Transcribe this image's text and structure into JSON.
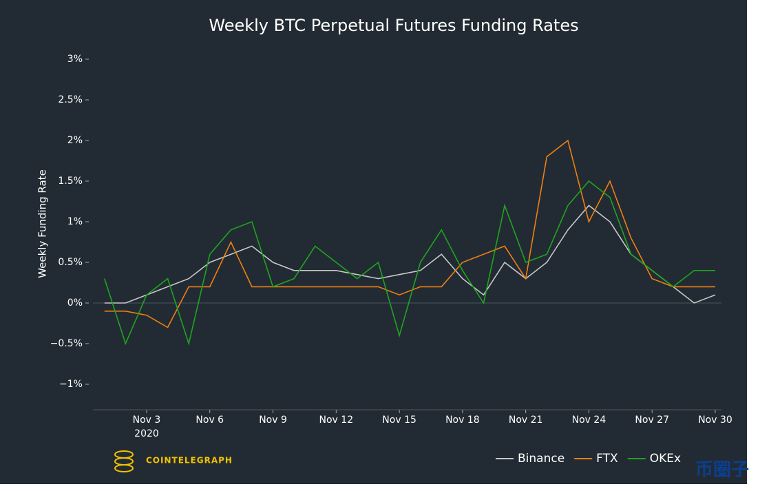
{
  "chart_data": {
    "type": "line",
    "title": "Weekly BTC Perpetual Futures Funding Rates",
    "y_label": "Weekly Funding Rate",
    "x": [
      "2020-11-01",
      "2020-11-02",
      "2020-11-03",
      "2020-11-04",
      "2020-11-05",
      "2020-11-06",
      "2020-11-07",
      "2020-11-08",
      "2020-11-09",
      "2020-11-10",
      "2020-11-11",
      "2020-11-12",
      "2020-11-13",
      "2020-11-14",
      "2020-11-15",
      "2020-11-16",
      "2020-11-17",
      "2020-11-18",
      "2020-11-19",
      "2020-11-20",
      "2020-11-21",
      "2020-11-22",
      "2020-11-23",
      "2020-11-24",
      "2020-11-25",
      "2020-11-26",
      "2020-11-27",
      "2020-11-28",
      "2020-11-29",
      "2020-11-30"
    ],
    "series": [
      {
        "name": "Binance",
        "color": "#c8c8c8",
        "values": [
          0.0,
          0.0,
          0.1,
          0.2,
          0.3,
          0.5,
          0.6,
          0.7,
          0.5,
          0.4,
          0.4,
          0.4,
          0.35,
          0.3,
          0.35,
          0.4,
          0.6,
          0.3,
          0.1,
          0.5,
          0.3,
          0.5,
          0.9,
          1.2,
          1.0,
          0.6,
          0.4,
          0.2,
          0.0,
          0.1
        ]
      },
      {
        "name": "FTX",
        "color": "#f07f13",
        "values": [
          -0.1,
          -0.1,
          -0.15,
          -0.3,
          0.2,
          0.2,
          0.75,
          0.2,
          0.2,
          0.2,
          0.2,
          0.2,
          0.2,
          0.2,
          0.1,
          0.2,
          0.2,
          0.5,
          0.6,
          0.7,
          0.3,
          1.8,
          2.0,
          1.0,
          1.5,
          0.8,
          0.3,
          0.2,
          0.2,
          0.2
        ]
      },
      {
        "name": "OKEx",
        "color": "#1fa51f",
        "values": [
          0.3,
          -0.5,
          0.1,
          0.3,
          -0.5,
          0.6,
          0.9,
          1.0,
          0.2,
          0.3,
          0.7,
          0.5,
          0.3,
          0.5,
          -0.4,
          0.5,
          0.9,
          0.4,
          0.0,
          1.2,
          0.5,
          0.6,
          1.2,
          1.5,
          1.3,
          0.6,
          0.4,
          0.2,
          0.4,
          0.4
        ]
      }
    ],
    "xlim": [
      "2020-10-31",
      "2020-12-01"
    ],
    "xticks": [
      {
        "value": "2020-11-03",
        "label": "Nov 3"
      },
      {
        "value": "2020-11-06",
        "label": "Nov 6"
      },
      {
        "value": "2020-11-09",
        "label": "Nov 9"
      },
      {
        "value": "2020-11-12",
        "label": "Nov 12"
      },
      {
        "value": "2020-11-15",
        "label": "Nov 15"
      },
      {
        "value": "2020-11-18",
        "label": "Nov 18"
      },
      {
        "value": "2020-11-21",
        "label": "Nov 21"
      },
      {
        "value": "2020-11-24",
        "label": "Nov 24"
      },
      {
        "value": "2020-11-27",
        "label": "Nov 27"
      },
      {
        "value": "2020-11-30",
        "label": "Nov 30"
      }
    ],
    "x_year_label": "2020",
    "ylim": [
      -1.3,
      3.1
    ],
    "yticks": [
      {
        "value": -1,
        "label": "−1%"
      },
      {
        "value": -0.5,
        "label": "−0.5%"
      },
      {
        "value": 0,
        "label": "0%"
      },
      {
        "value": 0.5,
        "label": "0.5%"
      },
      {
        "value": 1,
        "label": "1%"
      },
      {
        "value": 1.5,
        "label": "1.5%"
      },
      {
        "value": 2,
        "label": "2%"
      },
      {
        "value": 2.5,
        "label": "2.5%"
      },
      {
        "value": 3,
        "label": "3%"
      }
    ],
    "legend": "bottom-right",
    "source_logo": "COINTELEGRAPH",
    "watermark": "币圈子"
  }
}
